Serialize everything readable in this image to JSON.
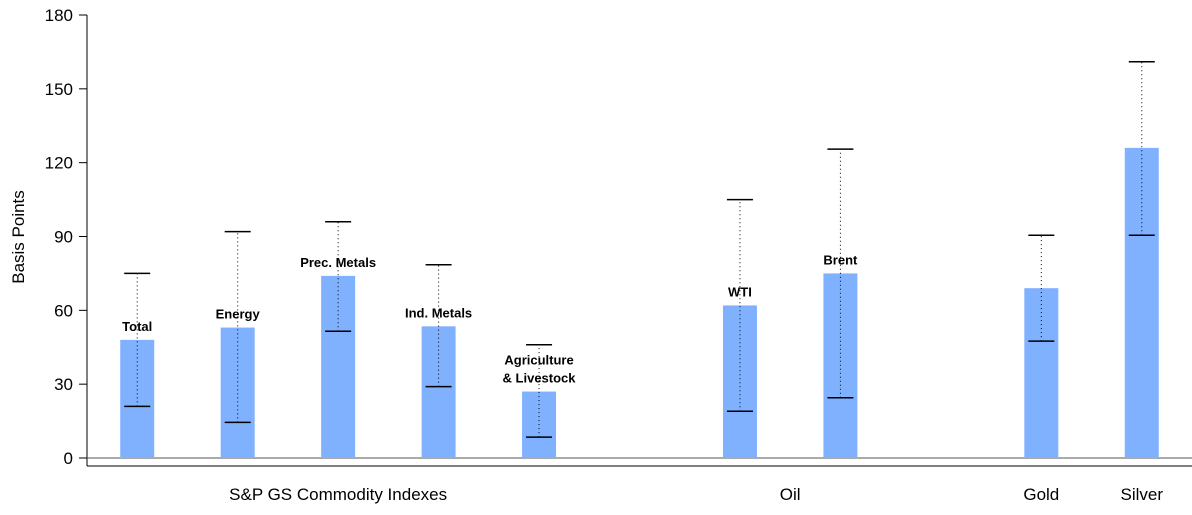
{
  "chart_data": {
    "type": "bar",
    "y_label": "Basis Points",
    "categories": [
      "Total",
      "Energy",
      "Prec. Metals",
      "Ind. Metals",
      "Agriculture\n& Livestock",
      null,
      "WTI",
      "Brent",
      null,
      null,
      null
    ],
    "groups": [
      "S&P GS Commodity Indexes",
      "S&P GS Commodity Indexes",
      "S&P GS Commodity Indexes",
      "S&P GS Commodity Indexes",
      "S&P GS Commodity Indexes",
      null,
      "Oil",
      "Oil",
      null,
      "Gold",
      "Silver"
    ],
    "values": [
      48,
      53,
      74,
      53.5,
      27,
      null,
      62,
      75,
      null,
      69,
      126
    ],
    "low": [
      21,
      14.5,
      51.5,
      29,
      8.5,
      null,
      19,
      24.5,
      null,
      47.5,
      90.5
    ],
    "high": [
      75,
      92,
      96,
      78.5,
      46,
      null,
      105,
      125.5,
      null,
      90.5,
      161
    ],
    "color": "#80b1ff",
    "ylim": [
      0,
      180
    ],
    "yticks": [
      0,
      30,
      60,
      90,
      120,
      150,
      180
    ]
  }
}
